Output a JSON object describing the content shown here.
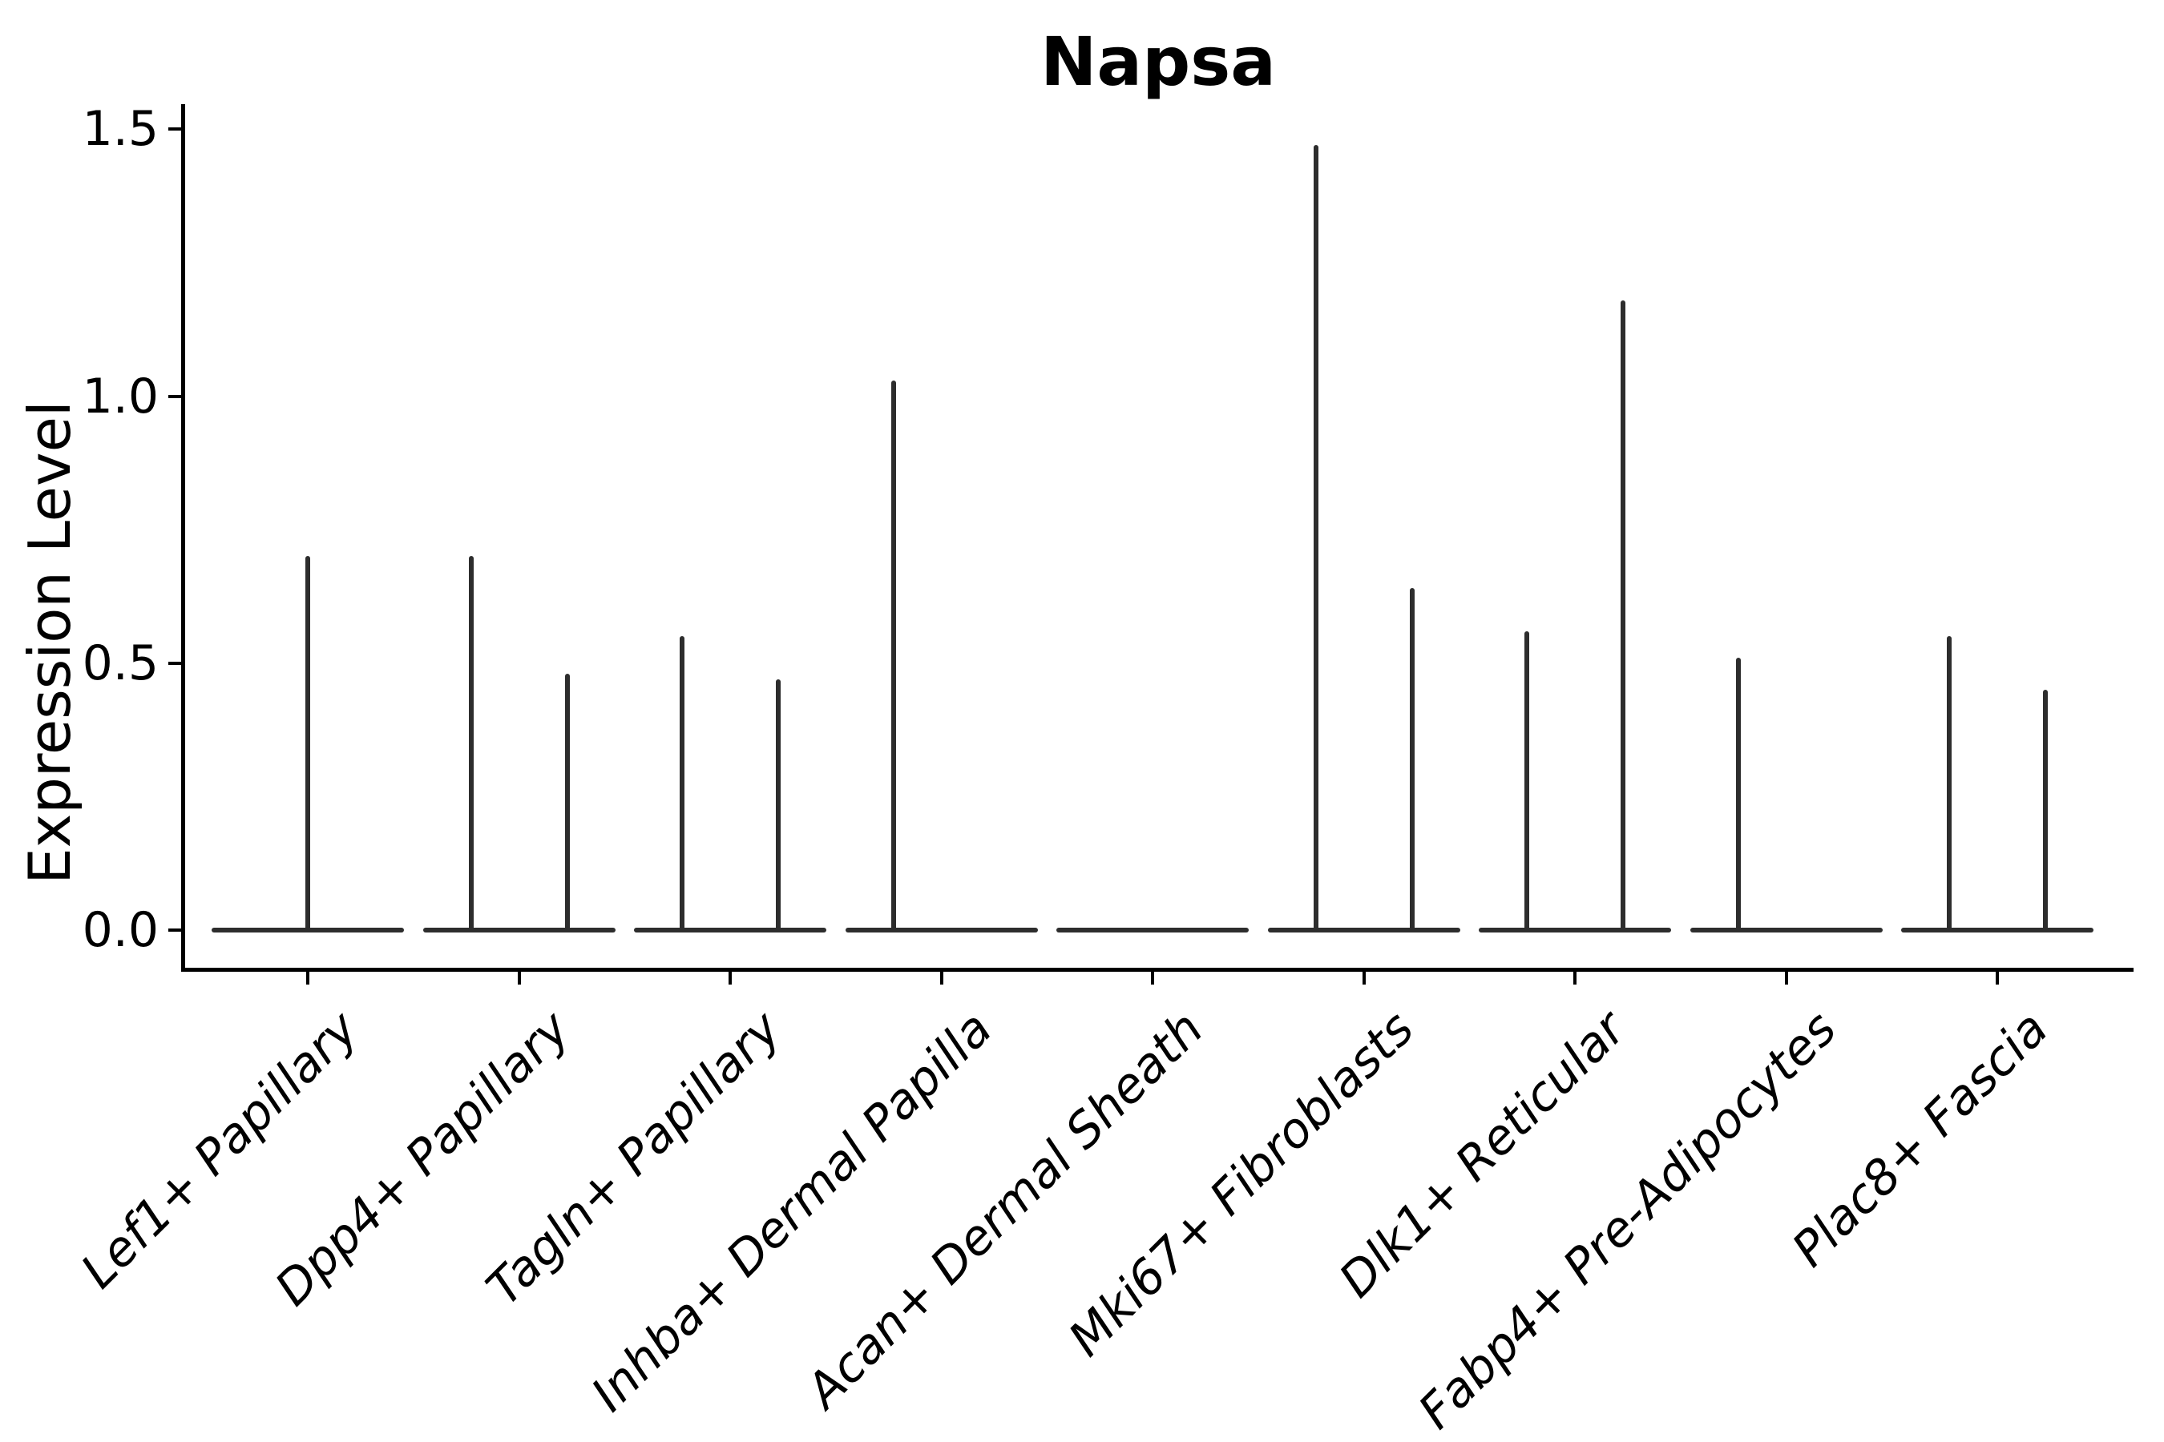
{
  "title": "Napsa",
  "ylabel": "Expression Level",
  "chart_data": {
    "type": "violin",
    "title": "Napsa",
    "xlabel": "",
    "ylabel": "Expression Level",
    "ylim": [
      -0.073,
      1.57
    ],
    "yticks": [
      0.0,
      0.5,
      1.0,
      1.5
    ],
    "ytick_labels": [
      "0.0",
      "0.5",
      "1.0",
      "1.5"
    ],
    "x_tick_rotation": 45,
    "grid": false,
    "legend": "none",
    "background": "#ffffff",
    "violin_stroke_color": "#2d2d2d",
    "axis_color": "#000000",
    "description": "Single-cell expression violin plot; density mass is concentrated at 0 (wide flat line per category) with thin density spikes reaching the listed maximum expression values. Some categories contain two side-by-side violins (left/right), some one, one none.",
    "categories": [
      "Lef1+ Papillary",
      "Dpp4+ Papillary",
      "Tagln+ Papillary",
      "Inhba+ Dermal Papilla",
      "Acan+ Dermal Sheath",
      "Mki67+ Fibroblasts",
      "Dlk1+ Reticular",
      "Fabp4+ Pre-Adipocytes",
      "Plac8+ Fascia"
    ],
    "series": [
      {
        "category": "Lef1+ Papillary",
        "baseline_value": 0,
        "violins": [
          {
            "position": "center",
            "max_expression": 0.7
          }
        ]
      },
      {
        "category": "Dpp4+ Papillary",
        "baseline_value": 0,
        "violins": [
          {
            "position": "left",
            "max_expression": 0.7
          },
          {
            "position": "right",
            "max_expression": 0.48
          }
        ]
      },
      {
        "category": "Tagln+ Papillary",
        "baseline_value": 0,
        "violins": [
          {
            "position": "left",
            "max_expression": 0.55
          },
          {
            "position": "right",
            "max_expression": 0.47
          }
        ]
      },
      {
        "category": "Inhba+ Dermal Papilla",
        "baseline_value": 0,
        "violins": [
          {
            "position": "left",
            "max_expression": 1.03
          }
        ]
      },
      {
        "category": "Acan+ Dermal Sheath",
        "baseline_value": 0,
        "violins": []
      },
      {
        "category": "Mki67+ Fibroblasts",
        "baseline_value": 0,
        "violins": [
          {
            "position": "left",
            "max_expression": 1.47
          },
          {
            "position": "right",
            "max_expression": 0.64
          }
        ]
      },
      {
        "category": "Dlk1+ Reticular",
        "baseline_value": 0,
        "violins": [
          {
            "position": "left",
            "max_expression": 0.56
          },
          {
            "position": "right",
            "max_expression": 1.18
          }
        ]
      },
      {
        "category": "Fabp4+ Pre-Adipocytes",
        "baseline_value": 0,
        "violins": [
          {
            "position": "left",
            "max_expression": 0.51
          }
        ]
      },
      {
        "category": "Plac8+ Fascia",
        "baseline_value": 0,
        "violins": [
          {
            "position": "left",
            "max_expression": 0.55
          },
          {
            "position": "right",
            "max_expression": 0.45
          }
        ]
      }
    ]
  }
}
